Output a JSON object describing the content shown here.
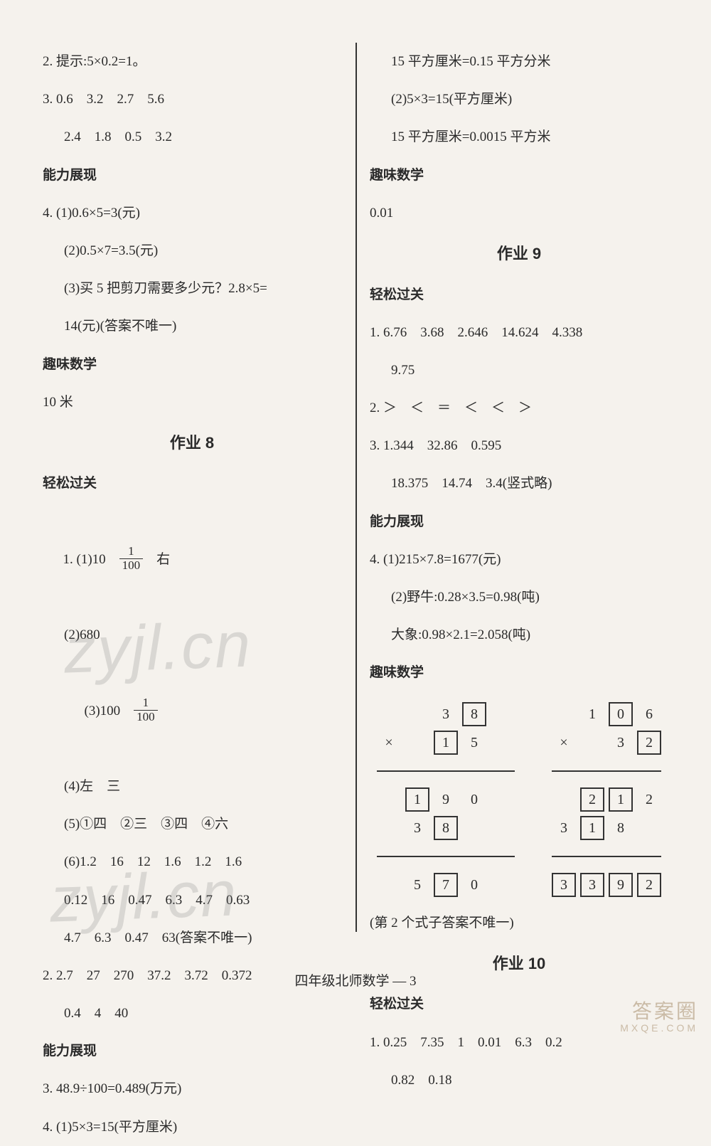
{
  "left": {
    "l2": "2. 提示:5×0.2=1。",
    "l3a": "3. 0.6　3.2　2.7　5.6",
    "l3b": "2.4　1.8　0.5　3.2",
    "h_ability": "能力展现",
    "l4a": "4. (1)0.6×5=3(元)",
    "l4b": "(2)0.5×7=3.5(元)",
    "l4c": "(3)买 5 把剪刀需要多少元？2.8×5=",
    "l4d": "14(元)(答案不唯一)",
    "h_fun": "趣味数学",
    "l_fun": "10 米",
    "title8": "作业 8",
    "h_easy": "轻松过关",
    "q1_1_pre": "1. (1)10　",
    "q1_1_post": "　右",
    "q1_2": "(2)680",
    "q1_3_pre": "(3)100　",
    "q1_4": "(4)左　三",
    "q1_5": "(5)①四　②三　③四　④六",
    "q1_6a": "(6)1.2　16　12　1.6　1.2　1.6",
    "q1_6b": "0.12　16　0.47　6.3　4.7　0.63",
    "q1_6c": "4.7　6.3　0.47　63(答案不唯一)",
    "q2a": "2. 2.7　27　270　37.2　3.72　0.372",
    "q2b": "0.4　4　40",
    "h_ability2": "能力展现",
    "q3": "3. 48.9÷100=0.489(万元)",
    "q4": "4. (1)5×3=15(平方厘米)",
    "frac_num": "1",
    "frac_den": "100"
  },
  "right": {
    "r1": "15 平方厘米=0.15 平方分米",
    "r2": "(2)5×3=15(平方厘米)",
    "r3": "15 平方厘米=0.0015 平方米",
    "h_fun": "趣味数学",
    "r_fun": "0.01",
    "title9": "作业 9",
    "h_easy": "轻松过关",
    "q1a": "1. 6.76　3.68　2.646　14.624　4.338",
    "q1b": "9.75",
    "q2": "2. ＞　＜　＝　＜　＜　＞",
    "q3a": "3. 1.344　32.86　0.595",
    "q3b": "18.375　14.74　3.4(竖式略)",
    "h_ability": "能力展现",
    "q4a": "4. (1)215×7.8=1677(元)",
    "q4b": "(2)野牛:0.28×3.5=0.98(吨)",
    "q4c": "大象:0.98×2.1=2.058(吨)",
    "h_fun2": "趣味数学",
    "note": "(第 2 个式子答案不唯一)",
    "title10": "作业 10",
    "h_easy2": "轻松过关",
    "q10_1a": "1. 0.25　7.35　1　0.01　6.3　0.2",
    "q10_1b": "0.82　0.18"
  },
  "vmul1": {
    "r0": [
      "",
      "",
      "3",
      "8",
      ""
    ],
    "r1": [
      "×",
      "",
      "1",
      "5",
      ""
    ],
    "r2": [
      "",
      "1",
      "9",
      "0",
      ""
    ],
    "r3": [
      "",
      "3",
      "8",
      "",
      ""
    ],
    "r4": [
      "",
      "5",
      "7",
      "0",
      ""
    ],
    "box_r0": [
      0,
      0,
      0,
      1,
      0
    ],
    "box_r1": [
      0,
      0,
      1,
      0,
      0
    ],
    "box_r2": [
      0,
      1,
      0,
      0,
      0
    ],
    "box_r3": [
      0,
      0,
      1,
      0,
      0
    ],
    "box_r4": [
      0,
      0,
      1,
      0,
      0
    ]
  },
  "vmul2": {
    "r0": [
      "",
      "1",
      "0",
      "6"
    ],
    "r1": [
      "×",
      "",
      "3",
      "2"
    ],
    "r2": [
      "",
      "2",
      "1",
      "2"
    ],
    "r3": [
      "3",
      "1",
      "8",
      ""
    ],
    "r4": [
      "3",
      "3",
      "9",
      "2"
    ],
    "box_r0": [
      0,
      0,
      1,
      0
    ],
    "box_r1": [
      0,
      0,
      0,
      1
    ],
    "box_r2": [
      0,
      1,
      1,
      0
    ],
    "box_r3": [
      0,
      1,
      0,
      0
    ],
    "box_r4": [
      1,
      1,
      1,
      1
    ]
  },
  "footer": "四年级北师数学 — 3",
  "watermark": "zyjl.cn",
  "corner_big": "答案圈",
  "corner_small": "MXQE.COM"
}
